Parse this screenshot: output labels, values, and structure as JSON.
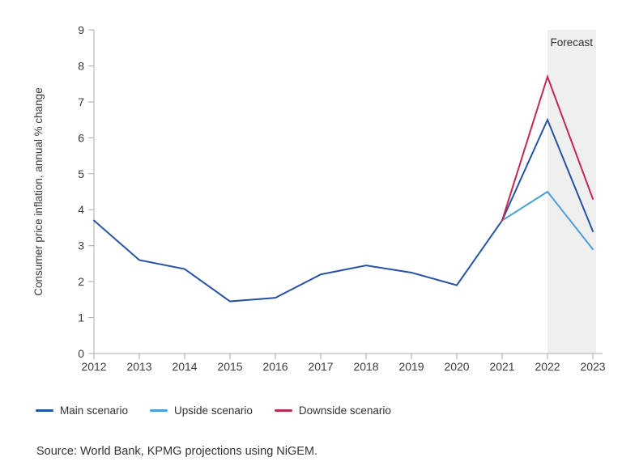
{
  "chart_data": {
    "type": "line",
    "title": "",
    "xlabel": "",
    "ylabel": "Consumer price inflation, annual % change",
    "x": [
      2012,
      2013,
      2014,
      2015,
      2016,
      2017,
      2018,
      2019,
      2020,
      2021,
      2022,
      2023
    ],
    "ylim": [
      0,
      9
    ],
    "yticks": [
      0,
      1,
      2,
      3,
      4,
      5,
      6,
      7,
      8,
      9
    ],
    "grid": false,
    "legend_position": "bottom-left",
    "series": [
      {
        "name": "Main scenario",
        "color": "#2652A3",
        "values": [
          3.7,
          2.6,
          2.35,
          1.45,
          1.55,
          2.2,
          2.45,
          2.25,
          1.9,
          3.7,
          6.5,
          3.4
        ]
      },
      {
        "name": "Upside scenario",
        "color": "#4B9FDB",
        "values": [
          null,
          null,
          null,
          null,
          null,
          null,
          null,
          null,
          null,
          3.7,
          4.5,
          2.9
        ]
      },
      {
        "name": "Downside scenario",
        "color": "#C22950",
        "values": [
          null,
          null,
          null,
          null,
          null,
          null,
          null,
          null,
          null,
          3.7,
          7.7,
          4.3
        ]
      }
    ],
    "forecast_band": {
      "label": "Forecast",
      "x_start": 2022,
      "x_end": 2023,
      "color": "#EFEFEF"
    },
    "axis_color": "#ABABAB",
    "tick_text_color": "#3C3C3C"
  },
  "source_note": "Source: World Bank, KPMG projections using NiGEM."
}
